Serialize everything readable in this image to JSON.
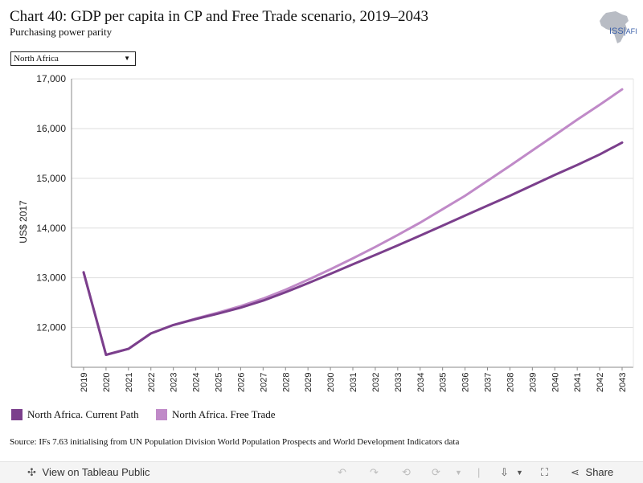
{
  "header": {
    "title": "Chart 40: GDP per capita in CP and Free Trade scenario, 2019–2043",
    "subtitle": "Purchasing power parity",
    "logo_text": "ISS",
    "logo_suffix": "AFI"
  },
  "filter": {
    "selected": "North Africa"
  },
  "chart_data": {
    "type": "line",
    "ylabel": "US$ 2017",
    "ylim": [
      11200,
      17100
    ],
    "yticks": [
      12000,
      13000,
      14000,
      15000,
      16000,
      17000
    ],
    "ytick_labels": [
      "12,000",
      "13,000",
      "14,000",
      "15,000",
      "16,000",
      "17,000"
    ],
    "x": [
      "2019",
      "2020",
      "2021",
      "2022",
      "2023",
      "2024",
      "2025",
      "2026",
      "2027",
      "2028",
      "2029",
      "2030",
      "2031",
      "2032",
      "2033",
      "2034",
      "2035",
      "2036",
      "2037",
      "2038",
      "2039",
      "2040",
      "2041",
      "2042",
      "2043"
    ],
    "grid": true,
    "series": [
      {
        "name": "North Africa. Current Path",
        "color": "#7b3f8c",
        "values": [
          13110,
          11450,
          11570,
          11880,
          12050,
          12170,
          12280,
          12400,
          12540,
          12710,
          12890,
          13080,
          13270,
          13460,
          13650,
          13850,
          14050,
          14250,
          14450,
          14650,
          14860,
          15070,
          15270,
          15480,
          15720
        ]
      },
      {
        "name": "North Africa. Free Trade",
        "color": "#c08ac8",
        "values": [
          13110,
          11450,
          11570,
          11880,
          12050,
          12180,
          12300,
          12430,
          12580,
          12760,
          12960,
          13170,
          13390,
          13620,
          13860,
          14110,
          14380,
          14650,
          14950,
          15250,
          15560,
          15870,
          16180,
          16480,
          16790
        ]
      }
    ],
    "legend_position": "bottom-left"
  },
  "source": "Source: IFs 7.63 initialising from UN Population Division World Population Prospects and World Development Indicators data",
  "footer": {
    "view_label": "View on Tableau Public",
    "share_label": "Share"
  }
}
